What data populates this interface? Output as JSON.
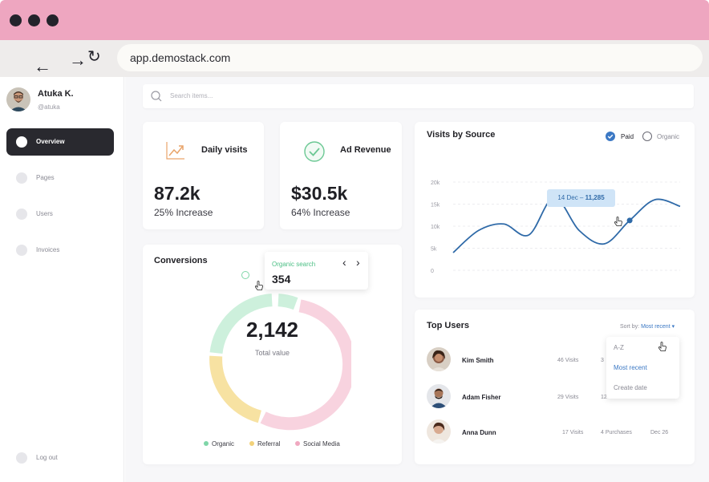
{
  "browser": {
    "url": "app.demostack.com",
    "back_glyph": "←",
    "forward_glyph": "→",
    "reload_glyph": "↻"
  },
  "user": {
    "name": "Atuka K.",
    "handle": "@atuka"
  },
  "sidebar": {
    "items": [
      {
        "label": "Overview"
      },
      {
        "label": "Pages"
      },
      {
        "label": "Users"
      },
      {
        "label": "Invoices"
      }
    ],
    "logout_label": "Log out"
  },
  "search": {
    "placeholder": "Search items..."
  },
  "stats": {
    "daily_visits": {
      "title": "Daily visits",
      "value": "87.2k",
      "change": "25% Increase"
    },
    "ad_revenue": {
      "title": "Ad Revenue",
      "value": "$30.5k",
      "change": "64% Increase"
    }
  },
  "conversions": {
    "title": "Conversions",
    "total": "2,142",
    "total_label": "Total value",
    "tooltip": {
      "label": "Organic search",
      "value": "354",
      "prev": "‹",
      "next": "›"
    },
    "legend": [
      {
        "label": "Organic",
        "color": "#7fd6a8"
      },
      {
        "label": "Referral",
        "color": "#f2d27a"
      },
      {
        "label": "Social Media",
        "color": "#f0a8c0"
      }
    ]
  },
  "visits_by_source": {
    "title": "Visits by Source",
    "paid_label": "Paid",
    "organic_label": "Organic",
    "tooltip_date": "14 Dec – ",
    "tooltip_value": "11,285"
  },
  "chart_data": {
    "type": "line",
    "title": "Visits by Source",
    "yticks": [
      "20k",
      "15k",
      "10k",
      "5k",
      "0"
    ],
    "ylim": [
      0,
      20000
    ],
    "grid": true,
    "legend": "top-right",
    "series": [
      {
        "name": "Paid",
        "color": "#2f6aa8",
        "values": [
          4000,
          9000,
          10500,
          8000,
          16500,
          9000,
          6000,
          11300,
          16000,
          14500
        ]
      }
    ],
    "annotations": [
      {
        "point_index": 7,
        "label": "14 Dec – 11,285"
      }
    ]
  },
  "top_users": {
    "title": "Top Users",
    "sort_prefix": "Sort by: ",
    "sort_value": "Most recent",
    "sort_options": [
      "A-Z",
      "Most recent",
      "Create date"
    ],
    "rows": [
      {
        "name": "Kim Smith",
        "visits": "46 Visits",
        "purchases": "3",
        "date": ""
      },
      {
        "name": "Adam Fisher",
        "visits": "29 Visits",
        "purchases": "12",
        "date": "Dec 2"
      },
      {
        "name": "Anna Dunn",
        "visits": "17 Visits",
        "purchases": "4 Purchases",
        "date": "Dec 26"
      }
    ]
  }
}
